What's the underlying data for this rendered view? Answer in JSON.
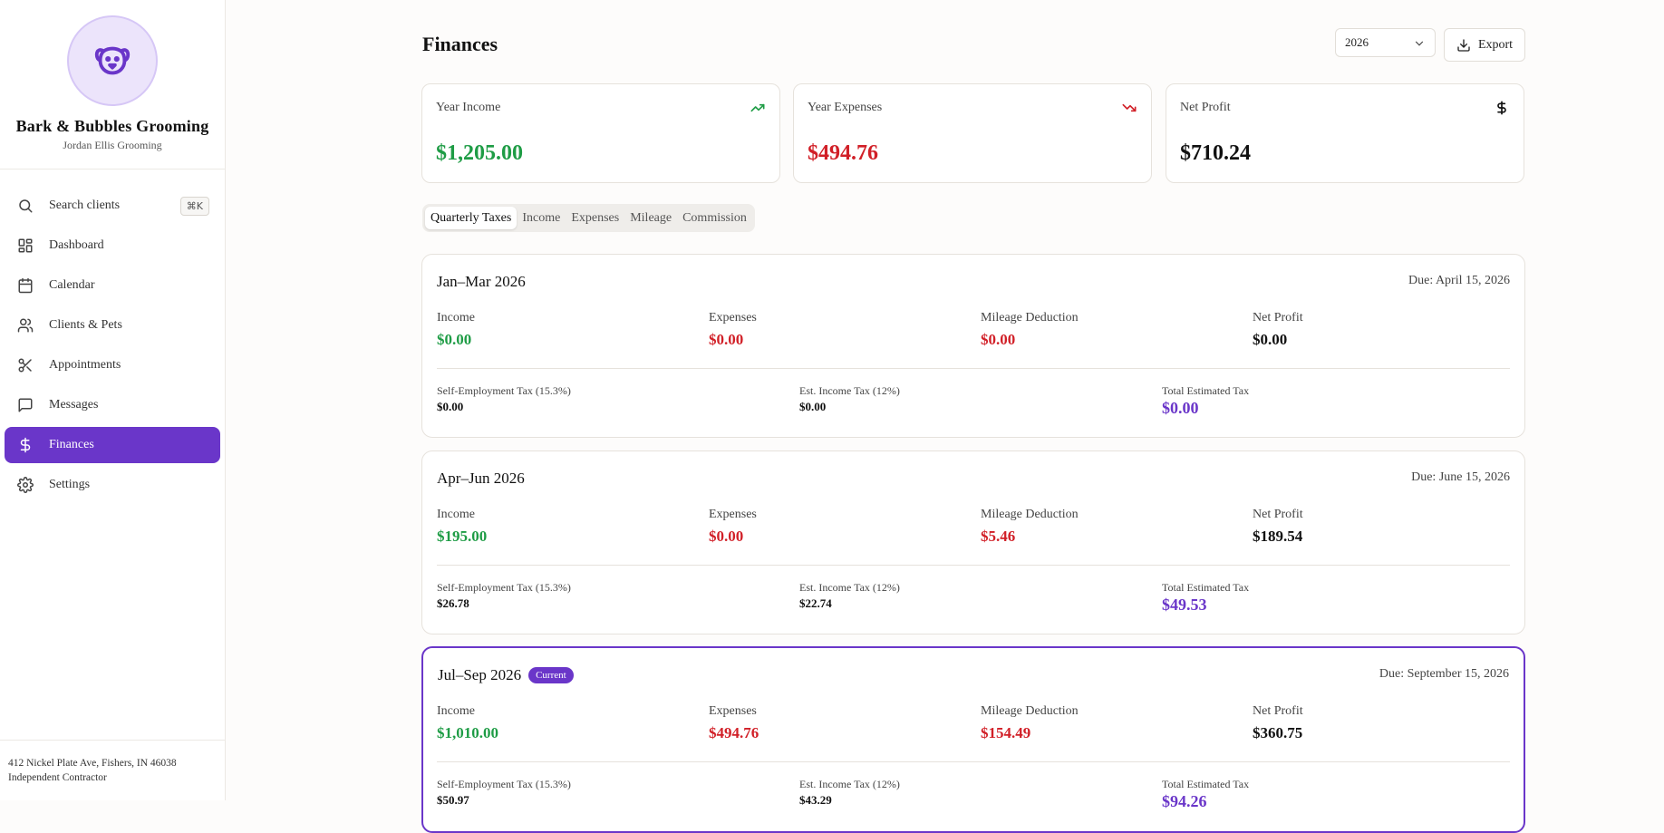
{
  "sidebar": {
    "brand_name": "Bark & Bubbles Grooming",
    "brand_sub": "Jordan Ellis Grooming",
    "search_label": "Search clients",
    "search_shortcut": "⌘K",
    "items": [
      {
        "label": "Dashboard",
        "icon": "dashboard-icon"
      },
      {
        "label": "Calendar",
        "icon": "calendar-icon"
      },
      {
        "label": "Clients & Pets",
        "icon": "users-icon"
      },
      {
        "label": "Appointments",
        "icon": "scissors-icon"
      },
      {
        "label": "Messages",
        "icon": "message-icon"
      },
      {
        "label": "Finances",
        "icon": "dollar-icon",
        "active": true
      },
      {
        "label": "Settings",
        "icon": "gear-icon"
      }
    ],
    "footer_address": "412 Nickel Plate Ave, Fishers, IN 46038",
    "footer_role": "Independent Contractor"
  },
  "header": {
    "title": "Finances",
    "year": "2026",
    "export_label": "Export"
  },
  "stats": [
    {
      "label": "Year Income",
      "value": "$1,205.00",
      "icon": "trending-up-icon",
      "color": "#1e9c45"
    },
    {
      "label": "Year Expenses",
      "value": "$494.76",
      "icon": "trending-down-icon",
      "color": "#d11f27"
    },
    {
      "label": "Net Profit",
      "value": "$710.24",
      "icon": "dollar-icon",
      "color": "#111111"
    }
  ],
  "tabs": [
    "Quarterly Taxes",
    "Income",
    "Expenses",
    "Mileage",
    "Commission"
  ],
  "labels": {
    "income": "Income",
    "expenses": "Expenses",
    "mileage": "Mileage Deduction",
    "net": "Net Profit",
    "se_tax": "Self-Employment Tax (15.3%)",
    "income_tax": "Est. Income Tax (12%)",
    "total_tax": "Total Estimated Tax",
    "current_badge": "Current"
  },
  "quarters": [
    {
      "title": "Jan–Mar 2026",
      "due": "Due: April 15, 2026",
      "income": "$0.00",
      "expenses": "$0.00",
      "mileage": "$0.00",
      "net": "$0.00",
      "se_tax": "$0.00",
      "income_tax": "$0.00",
      "total_tax": "$0.00"
    },
    {
      "title": "Apr–Jun 2026",
      "due": "Due: June 15, 2026",
      "income": "$195.00",
      "expenses": "$0.00",
      "mileage": "$5.46",
      "net": "$189.54",
      "se_tax": "$26.78",
      "income_tax": "$22.74",
      "total_tax": "$49.53"
    },
    {
      "title": "Jul–Sep 2026",
      "due": "Due: September 15, 2026",
      "income": "$1,010.00",
      "expenses": "$494.76",
      "mileage": "$154.49",
      "net": "$360.75",
      "se_tax": "$50.97",
      "income_tax": "$43.29",
      "total_tax": "$94.26",
      "current": true
    }
  ]
}
